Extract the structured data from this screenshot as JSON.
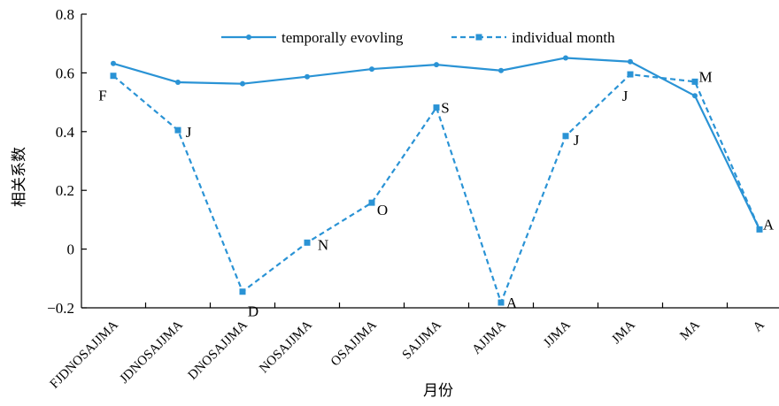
{
  "chart_data": {
    "type": "line",
    "title": "",
    "xlabel": "月份",
    "ylabel": "相关系数",
    "ylim": [
      -0.2,
      0.8
    ],
    "yticks": [
      "-0.2",
      "0",
      "0.2",
      "0.4",
      "0.6",
      "0.8"
    ],
    "categories": [
      "FJDNOSAJJMA",
      "JDNOSAJJMA",
      "DNOSAJJMA",
      "NOSAJJMA",
      "OSAJJMA",
      "SAJJMA",
      "AJJMA",
      "JJMA",
      "JMA",
      "MA",
      "A"
    ],
    "grid": false,
    "legend_position": "top",
    "series_color": "#2a93d5",
    "series": [
      {
        "name": "temporally evovling",
        "style": "solid-dot",
        "values": [
          0.632,
          0.568,
          0.563,
          0.587,
          0.613,
          0.628,
          0.608,
          0.651,
          0.638,
          0.522,
          0.067
        ]
      },
      {
        "name": "individual month",
        "style": "dashed-square",
        "values": [
          0.59,
          0.405,
          -0.145,
          0.022,
          0.158,
          0.482,
          -0.182,
          0.385,
          0.595,
          0.57,
          0.067
        ],
        "point_labels": [
          "F",
          "J",
          "D",
          "N",
          "O",
          "S",
          "A",
          "J",
          "J",
          "M",
          "A"
        ]
      }
    ]
  }
}
